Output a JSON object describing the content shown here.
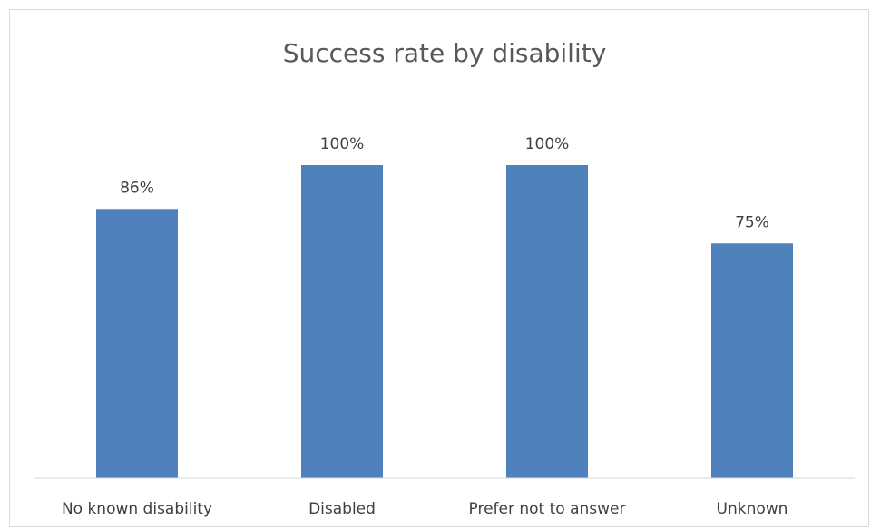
{
  "chart_data": {
    "type": "bar",
    "title": "Success rate by disability",
    "categories": [
      "No known disability",
      "Disabled",
      "Prefer not to answer",
      "Unknown"
    ],
    "values": [
      86,
      100,
      100,
      75
    ],
    "data_labels": [
      "86%",
      "100%",
      "100%",
      "75%"
    ],
    "unit": "%",
    "ylim": [
      0,
      100
    ],
    "grid": false,
    "legend": "none",
    "bar_color": "#4f81bd",
    "axis_color": "#d9d9d9",
    "text_color": "#404040"
  }
}
